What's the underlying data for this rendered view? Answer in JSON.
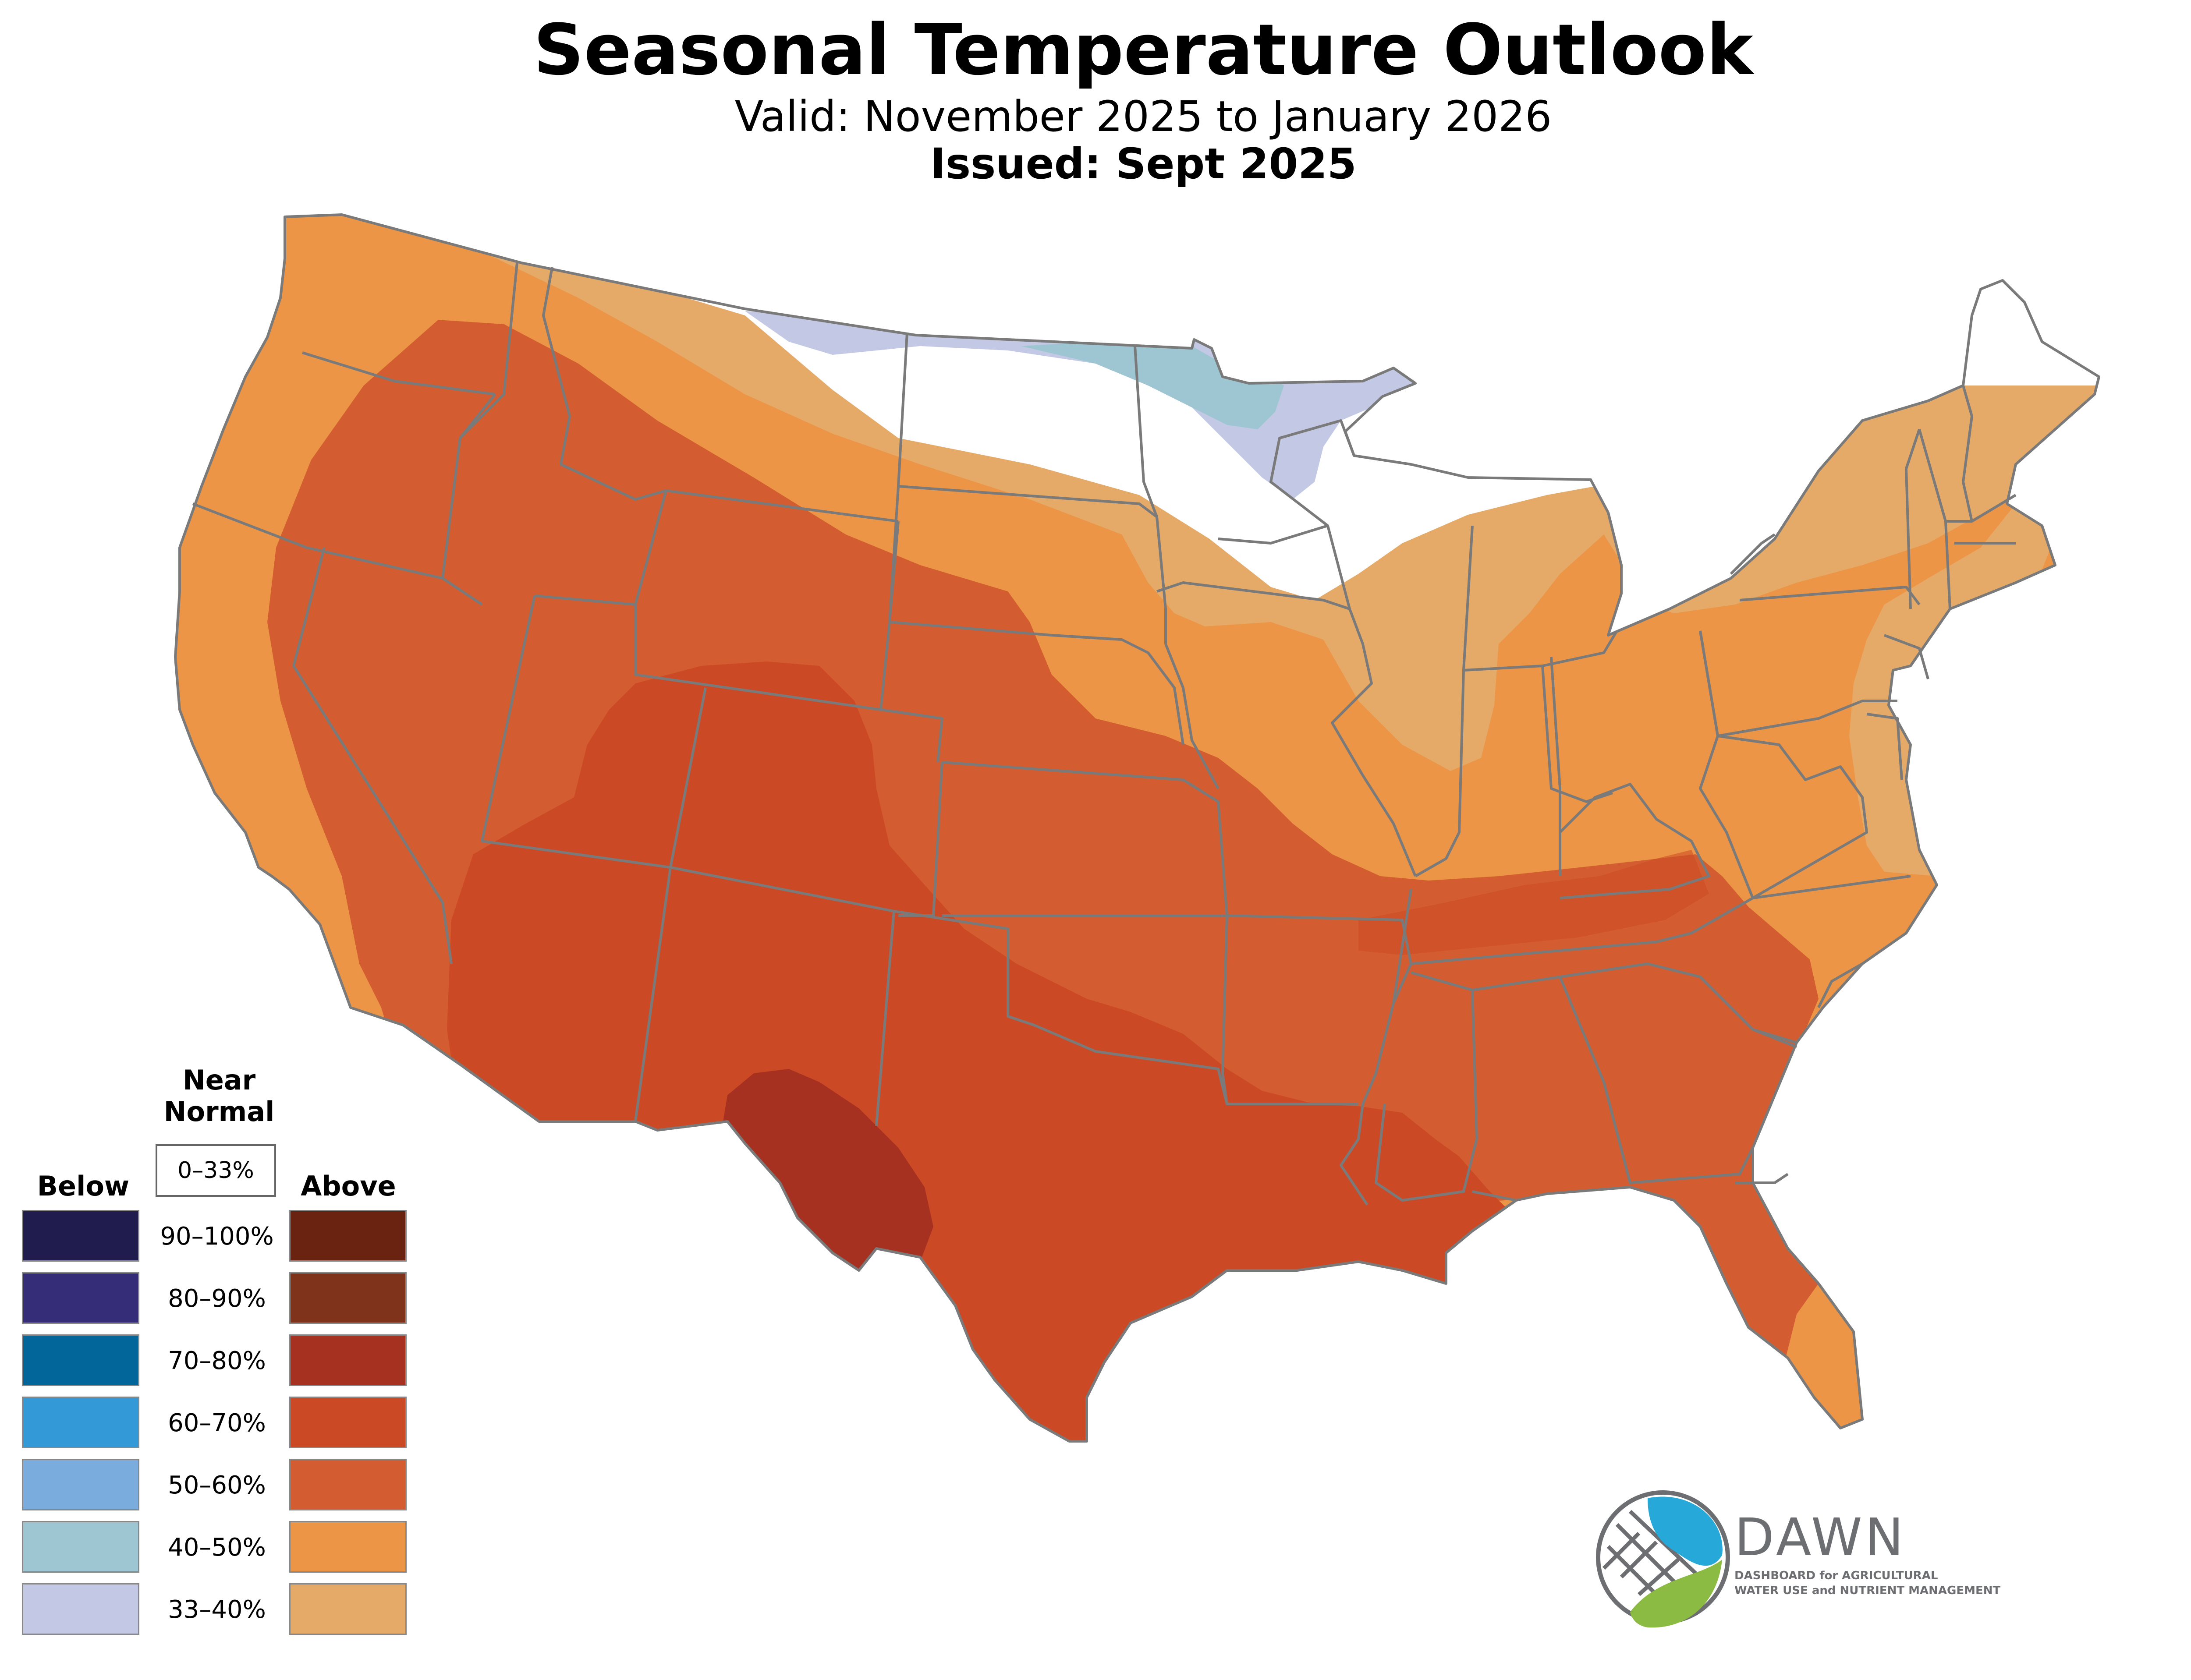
{
  "title": "Seasonal Temperature Outlook",
  "subtitle": "Valid: November 2025 to January 2026",
  "issued": "Issued: Sept 2025",
  "legend": {
    "below_heading": "Below",
    "near_normal_heading": "Near Normal",
    "above_heading": "Above",
    "near_normal_range": "0–33%",
    "rows": [
      {
        "label": "90–100%",
        "below_color": "#211c4e",
        "above_color": "#692310"
      },
      {
        "label": "80–90%",
        "below_color": "#352d77",
        "above_color": "#80331b"
      },
      {
        "label": "70–80%",
        "below_color": "#02669a",
        "above_color": "#a63121"
      },
      {
        "label": "60–70%",
        "below_color": "#349ad7",
        "above_color": "#cc4925"
      },
      {
        "label": "50–60%",
        "below_color": "#7aacdd",
        "above_color": "#d35d30"
      },
      {
        "label": "40–50%",
        "below_color": "#9ec6d2",
        "above_color": "#ec9546"
      },
      {
        "label": "33–40%",
        "below_color": "#c3c9e4",
        "above_color": "#e6aa68"
      }
    ]
  },
  "map_layers": {
    "outline_color": "#7a7a7a",
    "zones": [
      {
        "category": "Above",
        "range": "33–40%",
        "color": "#e6aa68"
      },
      {
        "category": "Above",
        "range": "40–50%",
        "color": "#ec9546"
      },
      {
        "category": "Above",
        "range": "50–60%",
        "color": "#d35d30"
      },
      {
        "category": "Above",
        "range": "60–70%",
        "color": "#cc4925"
      },
      {
        "category": "Above",
        "range": "70–80%",
        "color": "#a63121"
      },
      {
        "category": "Below",
        "range": "33–40%",
        "color": "#c3c9e4"
      },
      {
        "category": "Below",
        "range": "40–50%",
        "color": "#9ec6d2"
      },
      {
        "category": "Near Normal",
        "range": "0–33%",
        "color": "#ffffff"
      }
    ]
  },
  "logo": {
    "name": "DAWN",
    "tagline_line1": "DASHBOARD for AGRICULTURAL",
    "tagline_line2": "WATER USE and NUTRIENT MANAGEMENT",
    "blue": "#26a9d8",
    "green": "#8cbb43",
    "gray": "#6d6e71"
  }
}
